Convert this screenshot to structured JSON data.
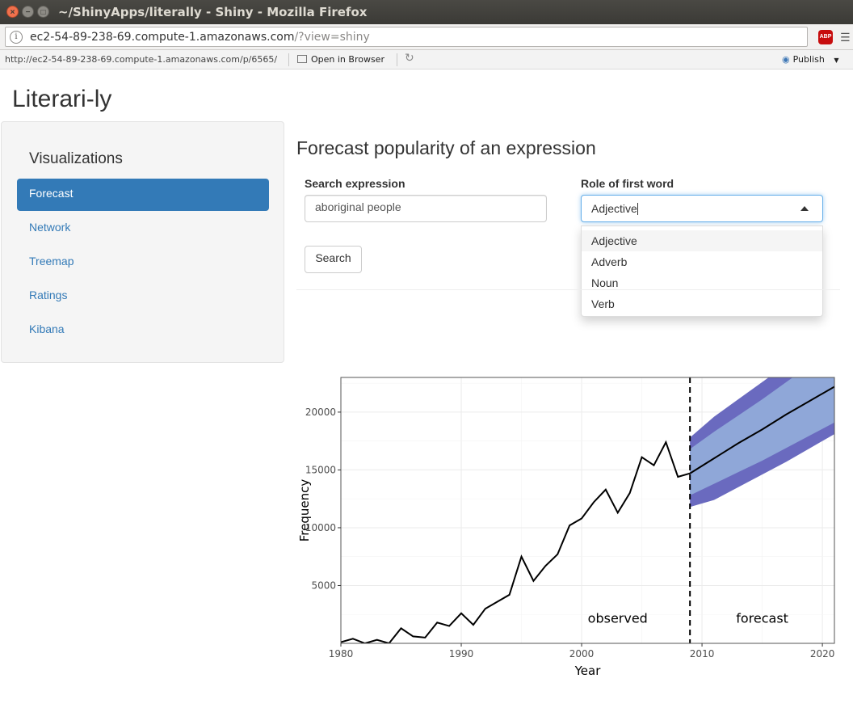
{
  "window": {
    "title": "~/ShinyApps/literally - Shiny - Mozilla Firefox",
    "close_glyph": "×",
    "min_glyph": "−",
    "max_glyph": "□"
  },
  "urlbar": {
    "host": "ec2-54-89-238-69.compute-1.amazonaws.com",
    "path": "/?view=shiny",
    "abp_label": "ABP"
  },
  "viewer": {
    "url": "http://ec2-54-89-238-69.compute-1.amazonaws.com/p/6565/",
    "open_in_browser": "Open in Browser",
    "publish": "Publish",
    "icons": [
      "info-icon",
      "open-browser-icon",
      "refresh-icon",
      "publish-icon",
      "chevron-down-icon",
      "adblock-icon",
      "menu-icon"
    ]
  },
  "app": {
    "title": "Literari-ly",
    "sidebar": {
      "heading": "Visualizations",
      "items": [
        {
          "label": "Forecast",
          "active": true
        },
        {
          "label": "Network",
          "active": false
        },
        {
          "label": "Treemap",
          "active": false
        },
        {
          "label": "Ratings",
          "active": false
        },
        {
          "label": "Kibana",
          "active": false
        }
      ]
    },
    "main": {
      "title": "Forecast popularity of an expression",
      "search_label": "Search expression",
      "search_value": "aboriginal people",
      "role_label": "Role of first word",
      "role_value": "Adjective",
      "role_options": [
        "Adjective",
        "Adverb",
        "Noun",
        "Verb"
      ],
      "search_button": "Search"
    }
  },
  "chart_data": {
    "type": "line",
    "xlabel": "Year",
    "ylabel": "Frequency",
    "xlim": [
      1980,
      2021
    ],
    "ylim": [
      0,
      23000
    ],
    "xticks": [
      1980,
      1990,
      2000,
      2010,
      2020
    ],
    "yticks": [
      5000,
      10000,
      15000,
      20000
    ],
    "grid": true,
    "annotations": [
      {
        "text": "observed",
        "x": 2003,
        "y": 1800
      },
      {
        "text": "forecast",
        "x": 2015,
        "y": 1800
      }
    ],
    "split_year": 2009,
    "colors": {
      "line": "#000000",
      "band_outer": "#6a6abf",
      "band_inner": "#8fa7d8"
    },
    "observed": {
      "x": [
        1980,
        1981,
        1982,
        1983,
        1984,
        1985,
        1986,
        1987,
        1988,
        1989,
        1990,
        1991,
        1992,
        1993,
        1994,
        1995,
        1996,
        1997,
        1998,
        1999,
        2000,
        2001,
        2002,
        2003,
        2004,
        2005,
        2006,
        2007,
        2008,
        2009
      ],
      "y": [
        100,
        400,
        0,
        300,
        0,
        1300,
        600,
        500,
        1800,
        1500,
        2600,
        1600,
        3000,
        3600,
        4200,
        7500,
        5400,
        6700,
        7700,
        10200,
        10800,
        12200,
        13300,
        11300,
        13000,
        16100,
        15400,
        17400,
        14400,
        14700
      ]
    },
    "forecast": {
      "x": [
        2009,
        2011,
        2013,
        2015,
        2017,
        2019,
        2021
      ],
      "mean": [
        14700,
        16000,
        17300,
        18500,
        19800,
        21000,
        22200
      ],
      "lo80": [
        12800,
        13800,
        14800,
        15800,
        16900,
        18000,
        19100
      ],
      "hi80": [
        16800,
        18300,
        19700,
        21100,
        22600,
        24100,
        25600
      ],
      "lo95": [
        11800,
        12400,
        13500,
        14600,
        15700,
        16900,
        18100
      ],
      "hi95": [
        17800,
        19600,
        21100,
        22600,
        24100,
        25600,
        27100
      ]
    }
  }
}
